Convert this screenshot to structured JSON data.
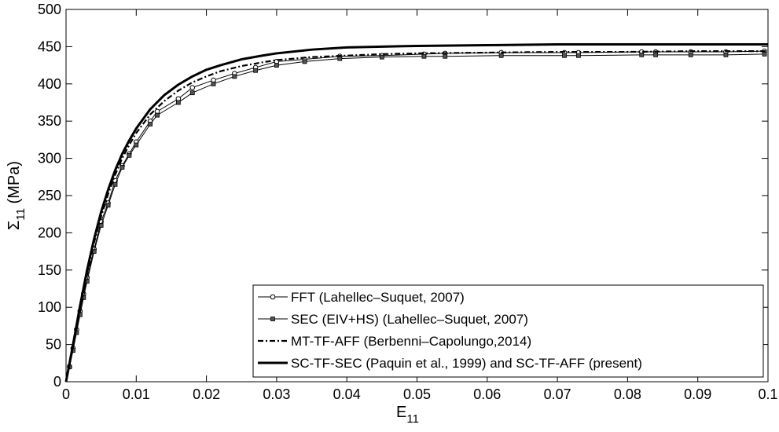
{
  "chart_data": {
    "type": "line",
    "title": "",
    "xlabel": "E",
    "xlabel_sub": "11",
    "ylabel": "Σ",
    "ylabel_sub": "11",
    "ylabel_unit": "(MPa)",
    "xlim": [
      0,
      0.1
    ],
    "ylim": [
      0,
      500
    ],
    "xticks": [
      0,
      0.01,
      0.02,
      0.03,
      0.04,
      0.05,
      0.06,
      0.07,
      0.08,
      0.09,
      0.1
    ],
    "xtick_labels": [
      "0",
      "0.01",
      "0.02",
      "0.03",
      "0.04",
      "0.05",
      "0.06",
      "0.07",
      "0.08",
      "0.09",
      "0.1"
    ],
    "yticks": [
      0,
      50,
      100,
      150,
      200,
      250,
      300,
      350,
      400,
      450,
      500
    ],
    "ytick_labels": [
      "0",
      "50",
      "100",
      "150",
      "200",
      "250",
      "300",
      "350",
      "400",
      "450",
      "500"
    ],
    "grid": false,
    "legend_position": "bottom-right",
    "series": [
      {
        "name": "FFT (Lahellec–Suquet, 2007)",
        "style": "line-circle",
        "color": "#000000",
        "x": [
          0,
          0.0005,
          0.001,
          0.0015,
          0.002,
          0.0025,
          0.003,
          0.004,
          0.005,
          0.006,
          0.007,
          0.008,
          0.009,
          0.01,
          0.012,
          0.013,
          0.016,
          0.018,
          0.021,
          0.024,
          0.027,
          0.03,
          0.034,
          0.039,
          0.045,
          0.051,
          0.054,
          0.062,
          0.071,
          0.073,
          0.082,
          0.084,
          0.089,
          0.094,
          0.0995
        ],
        "y": [
          0,
          20,
          45,
          70,
          95,
          118,
          140,
          178,
          215,
          240,
          270,
          290,
          306,
          322,
          350,
          363,
          380,
          395,
          405,
          414,
          422,
          430,
          433,
          437,
          438,
          440,
          441,
          442,
          442,
          442,
          443,
          443,
          443,
          443,
          444
        ]
      },
      {
        "name": "SEC (EIV+HS) (Lahellec–Suquet, 2007)",
        "style": "line-square",
        "color": "#000000",
        "x": [
          0,
          0.0005,
          0.001,
          0.0015,
          0.002,
          0.0025,
          0.003,
          0.004,
          0.005,
          0.006,
          0.007,
          0.008,
          0.009,
          0.01,
          0.012,
          0.013,
          0.016,
          0.018,
          0.021,
          0.024,
          0.027,
          0.03,
          0.034,
          0.039,
          0.045,
          0.051,
          0.054,
          0.062,
          0.071,
          0.073,
          0.082,
          0.084,
          0.089,
          0.094,
          0.0995
        ],
        "y": [
          0,
          20,
          42,
          66,
          90,
          113,
          135,
          175,
          210,
          237,
          265,
          288,
          304,
          318,
          346,
          358,
          375,
          388,
          400,
          410,
          418,
          425,
          430,
          434,
          436,
          437,
          437,
          438,
          438,
          438,
          439,
          439,
          439,
          439,
          440
        ]
      },
      {
        "name": "MT-TF-AFF (Berbenni–Capolungo,2014)",
        "style": "dash-dot",
        "color": "#000000",
        "x": [
          0,
          0.001,
          0.002,
          0.003,
          0.004,
          0.005,
          0.006,
          0.007,
          0.008,
          0.009,
          0.01,
          0.012,
          0.014,
          0.016,
          0.018,
          0.02,
          0.022,
          0.025,
          0.028,
          0.03,
          0.035,
          0.04,
          0.045,
          0.05,
          0.06,
          0.07,
          0.08,
          0.09,
          0.1
        ],
        "y": [
          0,
          48,
          98,
          145,
          187,
          222,
          252,
          278,
          300,
          318,
          334,
          359,
          377,
          391,
          402,
          410,
          417,
          424,
          429,
          432,
          436,
          438,
          440,
          441,
          442,
          443,
          443,
          444,
          444
        ]
      },
      {
        "name": "SC-TF-SEC (Paquin et al., 1999) and SC-TF-AFF (present)",
        "style": "thick",
        "color": "#000000",
        "x": [
          0,
          0.001,
          0.002,
          0.003,
          0.004,
          0.005,
          0.006,
          0.007,
          0.008,
          0.009,
          0.01,
          0.012,
          0.014,
          0.016,
          0.018,
          0.02,
          0.022,
          0.025,
          0.028,
          0.03,
          0.035,
          0.04,
          0.045,
          0.05,
          0.06,
          0.07,
          0.08,
          0.09,
          0.1
        ],
        "y": [
          0,
          50,
          102,
          150,
          192,
          228,
          258,
          284,
          306,
          324,
          340,
          366,
          385,
          399,
          410,
          419,
          425,
          433,
          438,
          441,
          446,
          449,
          450,
          451,
          452,
          453,
          453,
          453,
          453
        ]
      }
    ]
  }
}
